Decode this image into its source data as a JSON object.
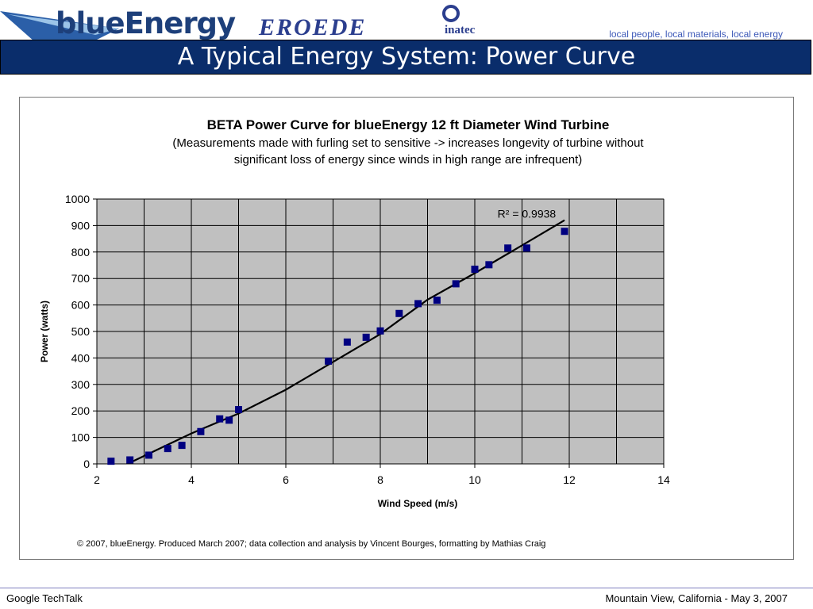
{
  "slide": {
    "logo": "blueEnergy",
    "partner_logo_1": "EROEDE",
    "partner_logo_2": "inatec",
    "tagline": "local people, local materials, local energy",
    "title": "A Typical Energy System: Power Curve",
    "footer_left": "Google TechTalk",
    "footer_right": "Mountain View, California - May 3, 2007"
  },
  "colors": {
    "title_bar": "#0a2d6b",
    "plot_bg": "#c0c0c0",
    "marker": "#000080",
    "trendline": "#000000",
    "tagline": "#3d59b8"
  },
  "chart_data": {
    "type": "scatter",
    "title": "BETA Power Curve for blueEnergy 12 ft Diameter Wind Turbine",
    "subtitle_lines": [
      "(Measurements made with furling set to sensitive -> increases longevity of turbine without",
      "significant loss of energy since winds in high range are infrequent)"
    ],
    "xlabel": "Wind Speed (m/s)",
    "ylabel": "Power (watts)",
    "xlim": [
      2,
      14
    ],
    "ylim": [
      0,
      1000
    ],
    "xticks": [
      "2",
      "4",
      "6",
      "8",
      "10",
      "12",
      "14"
    ],
    "yticks": [
      "0",
      "100",
      "200",
      "300",
      "400",
      "500",
      "600",
      "700",
      "800",
      "900",
      "1000"
    ],
    "grid": true,
    "legend": "none",
    "points": [
      {
        "x": 2.3,
        "y": 10
      },
      {
        "x": 2.7,
        "y": 15
      },
      {
        "x": 3.1,
        "y": 33
      },
      {
        "x": 3.5,
        "y": 58
      },
      {
        "x": 3.8,
        "y": 70
      },
      {
        "x": 4.2,
        "y": 122
      },
      {
        "x": 4.6,
        "y": 170
      },
      {
        "x": 4.8,
        "y": 165
      },
      {
        "x": 5.0,
        "y": 205
      },
      {
        "x": 6.9,
        "y": 388
      },
      {
        "x": 7.3,
        "y": 460
      },
      {
        "x": 7.7,
        "y": 478
      },
      {
        "x": 8.0,
        "y": 502
      },
      {
        "x": 8.4,
        "y": 568
      },
      {
        "x": 8.8,
        "y": 605
      },
      {
        "x": 9.2,
        "y": 618
      },
      {
        "x": 9.6,
        "y": 680
      },
      {
        "x": 10.0,
        "y": 735
      },
      {
        "x": 10.3,
        "y": 752
      },
      {
        "x": 10.7,
        "y": 815
      },
      {
        "x": 11.1,
        "y": 815
      },
      {
        "x": 11.9,
        "y": 878
      }
    ],
    "trendline": [
      {
        "x": 2.35,
        "y": -25
      },
      {
        "x": 3.0,
        "y": 30
      },
      {
        "x": 4.0,
        "y": 115
      },
      {
        "x": 5.0,
        "y": 190
      },
      {
        "x": 6.0,
        "y": 280
      },
      {
        "x": 7.0,
        "y": 385
      },
      {
        "x": 8.0,
        "y": 490
      },
      {
        "x": 9.0,
        "y": 620
      },
      {
        "x": 10.0,
        "y": 720
      },
      {
        "x": 11.0,
        "y": 825
      },
      {
        "x": 11.9,
        "y": 920
      }
    ],
    "r_squared_label": "R² = 0.9938",
    "copyright": "© 2007, blueEnergy. Produced March 2007; data collection and analysis by Vincent Bourges, formatting by Mathias Craig"
  }
}
